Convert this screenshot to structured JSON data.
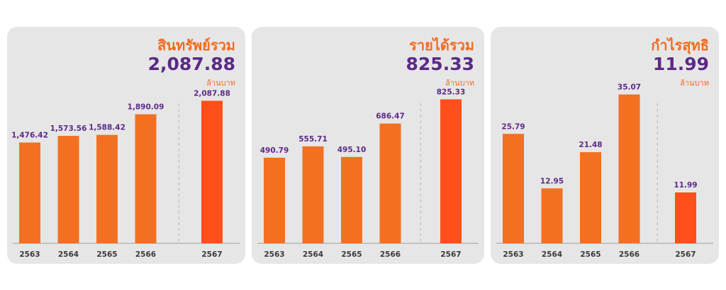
{
  "unit_label": "ล้านบาท",
  "colors": {
    "panel_bg": "#e6e6e6",
    "bar": "#f37021",
    "bar_highlight": "#ff4f1a",
    "value_text": "#5b2a86",
    "title_text": "#f26b21",
    "axis": "#9e9e9e",
    "divider": "#b5b5b5"
  },
  "chart_data": [
    {
      "type": "bar",
      "title": "สินทรัพย์รวม",
      "headline_value": "2,087.88",
      "unit": "ล้านบาท",
      "categories": [
        "2563",
        "2564",
        "2565",
        "2566",
        "2567"
      ],
      "values": [
        1476.42,
        1573.56,
        1588.42,
        1890.09,
        2087.88
      ],
      "value_labels": [
        "1,476.42",
        "1,573.56",
        "1,588.42",
        "1,890.09",
        "2,087.88"
      ],
      "highlight_index": 4,
      "ylim": [
        0,
        2300
      ]
    },
    {
      "type": "bar",
      "title": "รายได้รวม",
      "headline_value": "825.33",
      "unit": "ล้านบาท",
      "categories": [
        "2563",
        "2564",
        "2565",
        "2566",
        "2567"
      ],
      "values": [
        490.79,
        555.71,
        495.1,
        686.47,
        825.33
      ],
      "value_labels": [
        "490.79",
        "555.71",
        "495.10",
        "686.47",
        "825.33"
      ],
      "highlight_index": 4,
      "ylim": [
        0,
        900
      ]
    },
    {
      "type": "bar",
      "title": "กำไรสุทธิ",
      "headline_value": "11.99",
      "unit": "ล้านบาท",
      "categories": [
        "2563",
        "2564",
        "2565",
        "2566",
        "2567"
      ],
      "values": [
        25.79,
        12.95,
        21.48,
        35.07,
        11.99
      ],
      "value_labels": [
        "25.79",
        "12.95",
        "21.48",
        "35.07",
        "11.99"
      ],
      "highlight_index": 4,
      "ylim": [
        0,
        37
      ]
    }
  ]
}
